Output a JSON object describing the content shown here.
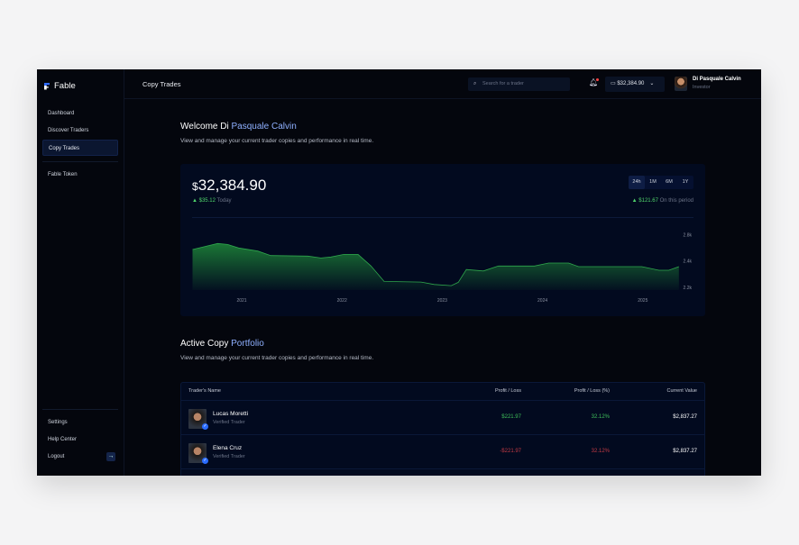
{
  "app": {
    "name": "Fable"
  },
  "sidebar": {
    "items": [
      {
        "label": "Dashboard"
      },
      {
        "label": "Discover Traders"
      },
      {
        "label": "Copy Trades",
        "active": true
      },
      {
        "label": "Fable Token"
      }
    ],
    "bottom": [
      {
        "label": "Settings"
      },
      {
        "label": "Help Center"
      },
      {
        "label": "Logout"
      }
    ]
  },
  "header": {
    "title": "Copy Trades",
    "search_placeholder": "Search for a trader",
    "balance": "$32,384.90",
    "user_name": "Di Pasquale Calvin",
    "user_role": "Investor"
  },
  "welcome": {
    "prefix": "Welcome Di ",
    "name": "Pasquale Calvin",
    "subtitle": "View and manage your current trader copies and performance in real time."
  },
  "summary": {
    "currency": "$",
    "amount": "32,384.90",
    "today_change": "$35.12",
    "today_label": "Today",
    "period_change": "$121.67",
    "period_label": "On this period",
    "ranges": [
      "24h",
      "1M",
      "6M",
      "1Y"
    ],
    "selected_range": "24h",
    "up_color": "#4fd36b"
  },
  "chart_data": {
    "type": "area",
    "x_ticks": [
      "2021",
      "2022",
      "2023",
      "2024",
      "2025"
    ],
    "y_ticks": [
      "2.8k",
      "2.4k",
      "2.2k"
    ],
    "color": "#1f8a3a",
    "points": [
      [
        2020.51,
        2.575
      ],
      [
        2020.76,
        2.667
      ],
      [
        2020.86,
        2.653
      ],
      [
        2020.97,
        2.598
      ],
      [
        2021.16,
        2.552
      ],
      [
        2021.29,
        2.483
      ],
      [
        2021.66,
        2.474
      ],
      [
        2021.79,
        2.446
      ],
      [
        2021.89,
        2.46
      ],
      [
        2022.02,
        2.501
      ],
      [
        2022.16,
        2.501
      ],
      [
        2022.29,
        2.362
      ],
      [
        2022.42,
        2.245
      ],
      [
        2022.79,
        2.24
      ],
      [
        2022.92,
        2.222
      ],
      [
        2023.09,
        2.213
      ],
      [
        2023.16,
        2.238
      ],
      [
        2023.24,
        2.335
      ],
      [
        2023.41,
        2.324
      ],
      [
        2023.56,
        2.362
      ],
      [
        2023.92,
        2.362
      ],
      [
        2024.06,
        2.384
      ],
      [
        2024.26,
        2.384
      ],
      [
        2024.36,
        2.357
      ],
      [
        2024.99,
        2.357
      ],
      [
        2025.16,
        2.33
      ],
      [
        2025.26,
        2.33
      ],
      [
        2025.36,
        2.357
      ]
    ]
  },
  "portfolio": {
    "title_prefix": "Active Copy ",
    "title_hl": "Portfolio",
    "subtitle": "View and manage your current trader copies and performance in real time.",
    "columns": [
      "Trader's Name",
      "Profit / Loss",
      "Profit / Loss (%)",
      "Current Value"
    ],
    "rows": [
      {
        "name": "Lucas Moretti",
        "role": "Verified Trader",
        "pl": "$221.97",
        "pct": "32.12%",
        "value": "$2,837.27",
        "color": "#3fbf5a"
      },
      {
        "name": "Elena Cruz",
        "role": "Verified Trader",
        "pl": "-$221.97",
        "pct": "32.12%",
        "value": "$2,837.27",
        "color": "#c23a44"
      }
    ]
  }
}
